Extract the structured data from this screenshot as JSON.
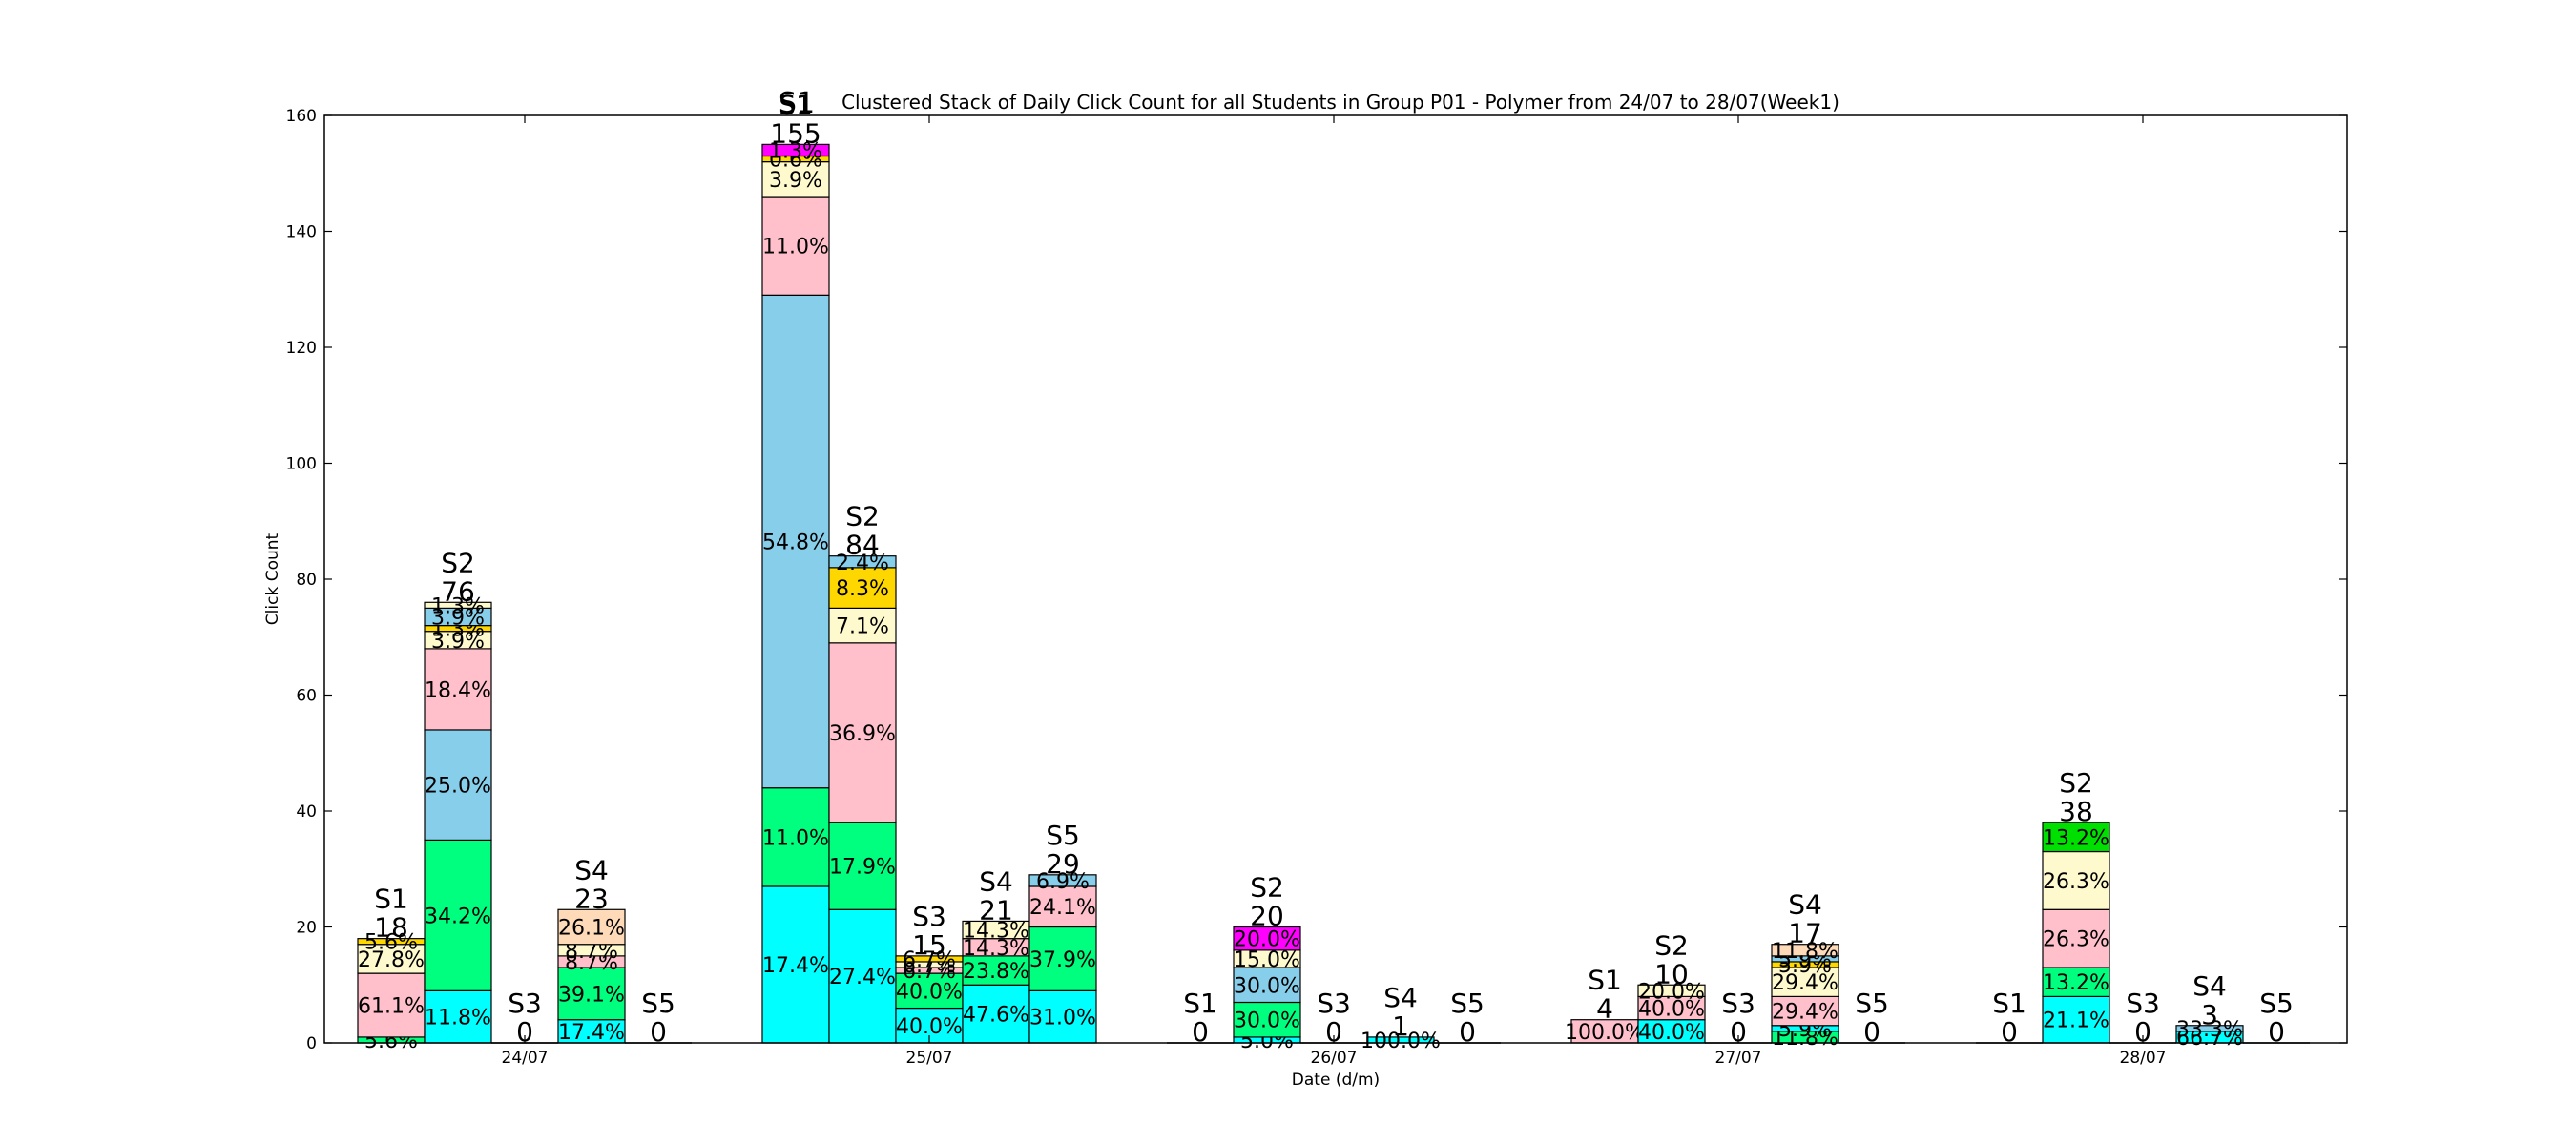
{
  "chart_data": {
    "type": "bar",
    "stacked": true,
    "clustered": true,
    "title_prefix": "S1",
    "title": "Clustered Stack of Daily Click Count for all Students in Group P01 - Polymer from 24/07 to 28/07(Week1)",
    "xlabel": "Date (d/m)",
    "ylabel": "Click Count",
    "ylim": [
      0,
      160
    ],
    "yticks": [
      "0",
      "20",
      "40",
      "60",
      "80",
      "100",
      "120",
      "140",
      "160"
    ],
    "categories": [
      "24/07",
      "25/07",
      "26/07",
      "27/07",
      "28/07"
    ],
    "segment_colors": {
      "cyan": "#00ffff",
      "green": "#00ff7f",
      "pink": "#ffc0cb",
      "lightyellow": "#fffacd",
      "gold": "#ffd700",
      "skyblue": "#87ceeb",
      "bisque": "#ffdab9",
      "lime": "#00e000",
      "magenta": "#ff00ff",
      "white": "#ffffff"
    },
    "groups": [
      {
        "date": "24/07",
        "bars": [
          {
            "student": "S1",
            "total": "18",
            "segments": [
              {
                "value": 1,
                "color": "green",
                "label": "5.6%"
              },
              {
                "value": 11,
                "color": "pink",
                "label": "61.1%"
              },
              {
                "value": 5,
                "color": "lightyellow",
                "label": "27.8%"
              },
              {
                "value": 1,
                "color": "gold",
                "label": "5.6%"
              }
            ]
          },
          {
            "student": "S2",
            "total": "76",
            "segments": [
              {
                "value": 9,
                "color": "cyan",
                "label": "11.8%"
              },
              {
                "value": 26,
                "color": "green",
                "label": "34.2%"
              },
              {
                "value": 19,
                "color": "skyblue",
                "label": "25.0%"
              },
              {
                "value": 14,
                "color": "pink",
                "label": "18.4%"
              },
              {
                "value": 3,
                "color": "lightyellow",
                "label": "3.9%"
              },
              {
                "value": 1,
                "color": "gold",
                "label": "1.3%"
              },
              {
                "value": 3,
                "color": "skyblue",
                "label": "3.9%"
              },
              {
                "value": 1,
                "color": "lightyellow",
                "label": "1.3%"
              }
            ]
          },
          {
            "student": "S3",
            "total": "0",
            "segments": []
          },
          {
            "student": "S4",
            "total": "23",
            "segments": [
              {
                "value": 4,
                "color": "cyan",
                "label": "17.4%"
              },
              {
                "value": 9,
                "color": "green",
                "label": "39.1%"
              },
              {
                "value": 2,
                "color": "pink",
                "label": "8.7%"
              },
              {
                "value": 2,
                "color": "lightyellow",
                "label": "8.7%"
              },
              {
                "value": 6,
                "color": "bisque",
                "label": "26.1%"
              }
            ]
          },
          {
            "student": "S5",
            "total": "0",
            "segments": []
          }
        ]
      },
      {
        "date": "25/07",
        "bars": [
          {
            "student": "S1",
            "total": "155",
            "segments": [
              {
                "value": 27,
                "color": "cyan",
                "label": "17.4%"
              },
              {
                "value": 17,
                "color": "green",
                "label": "11.0%"
              },
              {
                "value": 85,
                "color": "skyblue",
                "label": "54.8%"
              },
              {
                "value": 17,
                "color": "pink",
                "label": "11.0%"
              },
              {
                "value": 6,
                "color": "lightyellow",
                "label": "3.9%"
              },
              {
                "value": 1,
                "color": "gold",
                "label": "0.6%"
              },
              {
                "value": 2,
                "color": "magenta",
                "label": "1.3%"
              }
            ]
          },
          {
            "student": "S2",
            "total": "84",
            "segments": [
              {
                "value": 23,
                "color": "cyan",
                "label": "27.4%"
              },
              {
                "value": 15,
                "color": "green",
                "label": "17.9%"
              },
              {
                "value": 31,
                "color": "pink",
                "label": "36.9%"
              },
              {
                "value": 6,
                "color": "lightyellow",
                "label": "7.1%"
              },
              {
                "value": 7,
                "color": "gold",
                "label": "8.3%"
              },
              {
                "value": 2,
                "color": "skyblue",
                "label": "2.4%"
              }
            ]
          },
          {
            "student": "S3",
            "total": "15",
            "segments": [
              {
                "value": 6,
                "color": "cyan",
                "label": "40.0%"
              },
              {
                "value": 6,
                "color": "green",
                "label": "40.0%"
              },
              {
                "value": 1,
                "color": "pink",
                "label": "6.7%"
              },
              {
                "value": 1,
                "color": "lightyellow",
                "label": "6.7%"
              },
              {
                "value": 1,
                "color": "gold",
                "label": "6.7%"
              }
            ]
          },
          {
            "student": "S4",
            "total": "21",
            "segments": [
              {
                "value": 10,
                "color": "cyan",
                "label": "47.6%"
              },
              {
                "value": 5,
                "color": "green",
                "label": "23.8%"
              },
              {
                "value": 3,
                "color": "pink",
                "label": "14.3%"
              },
              {
                "value": 3,
                "color": "lightyellow",
                "label": "14.3%"
              }
            ]
          },
          {
            "student": "S5",
            "total": "29",
            "segments": [
              {
                "value": 9,
                "color": "cyan",
                "label": "31.0%"
              },
              {
                "value": 11,
                "color": "green",
                "label": "37.9%"
              },
              {
                "value": 7,
                "color": "pink",
                "label": "24.1%"
              },
              {
                "value": 2,
                "color": "skyblue",
                "label": "6.9%"
              }
            ]
          }
        ]
      },
      {
        "date": "26/07",
        "bars": [
          {
            "student": "S1",
            "total": "0",
            "segments": []
          },
          {
            "student": "S2",
            "total": "20",
            "segments": [
              {
                "value": 1,
                "color": "cyan",
                "label": "5.0%"
              },
              {
                "value": 6,
                "color": "green",
                "label": "30.0%"
              },
              {
                "value": 6,
                "color": "skyblue",
                "label": "30.0%"
              },
              {
                "value": 3,
                "color": "lightyellow",
                "label": "15.0%"
              },
              {
                "value": 4,
                "color": "magenta",
                "label": "20.0%"
              }
            ]
          },
          {
            "student": "S3",
            "total": "0",
            "segments": []
          },
          {
            "student": "S4",
            "total": "1",
            "segments": [
              {
                "value": 1,
                "color": "cyan",
                "label": "100.0%"
              }
            ]
          },
          {
            "student": "S5",
            "total": "0",
            "segments": []
          }
        ]
      },
      {
        "date": "27/07",
        "bars": [
          {
            "student": "S1",
            "total": "4",
            "segments": [
              {
                "value": 4,
                "color": "pink",
                "label": "100.0%"
              }
            ]
          },
          {
            "student": "S2",
            "total": "10",
            "segments": [
              {
                "value": 4,
                "color": "cyan",
                "label": "40.0%"
              },
              {
                "value": 4,
                "color": "pink",
                "label": "40.0%"
              },
              {
                "value": 2,
                "color": "lightyellow",
                "label": "20.0%"
              }
            ]
          },
          {
            "student": "S3",
            "total": "0",
            "segments": []
          },
          {
            "student": "S4",
            "total": "17",
            "segments": [
              {
                "value": 2,
                "color": "green",
                "label": "11.8%"
              },
              {
                "value": 1,
                "color": "cyan",
                "label": "5.9%"
              },
              {
                "value": 5,
                "color": "pink",
                "label": "29.4%"
              },
              {
                "value": 5,
                "color": "lightyellow",
                "label": "29.4%"
              },
              {
                "value": 1,
                "color": "gold",
                "label": "5.9%"
              },
              {
                "value": 1,
                "color": "skyblue",
                "label": "5.9%"
              },
              {
                "value": 2,
                "color": "bisque",
                "label": "11.8%"
              }
            ]
          },
          {
            "student": "S5",
            "total": "0",
            "segments": []
          }
        ]
      },
      {
        "date": "28/07",
        "bars": [
          {
            "student": "S1",
            "total": "0",
            "segments": []
          },
          {
            "student": "S2",
            "total": "38",
            "segments": [
              {
                "value": 8,
                "color": "cyan",
                "label": "21.1%"
              },
              {
                "value": 5,
                "color": "green",
                "label": "13.2%"
              },
              {
                "value": 10,
                "color": "pink",
                "label": "26.3%"
              },
              {
                "value": 10,
                "color": "lightyellow",
                "label": "26.3%"
              },
              {
                "value": 5,
                "color": "lime",
                "label": "13.2%"
              }
            ]
          },
          {
            "student": "S3",
            "total": "0",
            "segments": []
          },
          {
            "student": "S4",
            "total": "3",
            "segments": [
              {
                "value": 2,
                "color": "cyan",
                "label": "66.7%"
              },
              {
                "value": 1,
                "color": "skyblue",
                "label": "33.3%"
              }
            ]
          },
          {
            "student": "S5",
            "total": "0",
            "segments": []
          }
        ]
      }
    ]
  }
}
